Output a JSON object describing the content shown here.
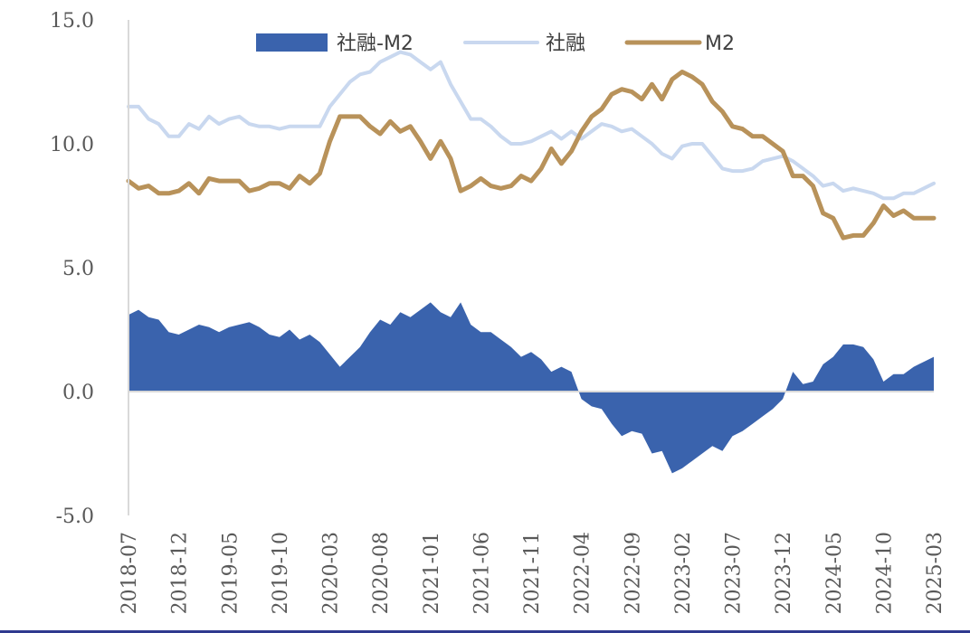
{
  "chart_data": {
    "type": "line",
    "title": "",
    "xlabel": "",
    "ylabel": "",
    "ylim": [
      -5.0,
      15.0
    ],
    "yticks": [
      "15.0",
      "10.0",
      "5.0",
      "0.0",
      "-5.0"
    ],
    "xtick_labels": [
      "2018-07",
      "2018-12",
      "2019-05",
      "2019-10",
      "2020-03",
      "2020-08",
      "2021-01",
      "2021-06",
      "2021-11",
      "2022-04",
      "2022-09",
      "2023-02",
      "2023-07",
      "2023-12",
      "2024-05",
      "2024-10",
      "2025-03"
    ],
    "legend": {
      "position": "top",
      "entries": [
        "社融-M2",
        "社融",
        "M2"
      ]
    },
    "grid": false,
    "x": [
      "2018-07",
      "2018-08",
      "2018-09",
      "2018-10",
      "2018-11",
      "2018-12",
      "2019-01",
      "2019-02",
      "2019-03",
      "2019-04",
      "2019-05",
      "2019-06",
      "2019-07",
      "2019-08",
      "2019-09",
      "2019-10",
      "2019-11",
      "2019-12",
      "2020-01",
      "2020-02",
      "2020-03",
      "2020-04",
      "2020-05",
      "2020-06",
      "2020-07",
      "2020-08",
      "2020-09",
      "2020-10",
      "2020-11",
      "2020-12",
      "2021-01",
      "2021-02",
      "2021-03",
      "2021-04",
      "2021-05",
      "2021-06",
      "2021-07",
      "2021-08",
      "2021-09",
      "2021-10",
      "2021-11",
      "2021-12",
      "2022-01",
      "2022-02",
      "2022-03",
      "2022-04",
      "2022-05",
      "2022-06",
      "2022-07",
      "2022-08",
      "2022-09",
      "2022-10",
      "2022-11",
      "2022-12",
      "2023-01",
      "2023-02",
      "2023-03",
      "2023-04",
      "2023-05",
      "2023-06",
      "2023-07",
      "2023-08",
      "2023-09",
      "2023-10",
      "2023-11",
      "2023-12",
      "2024-01",
      "2024-02",
      "2024-03",
      "2024-04",
      "2024-05",
      "2024-06",
      "2024-07",
      "2024-08",
      "2024-09",
      "2024-10",
      "2024-11",
      "2024-12",
      "2025-01",
      "2025-02",
      "2025-03"
    ],
    "series": [
      {
        "name": "社融-M2",
        "type": "area",
        "color": "#3a63ad",
        "values": [
          3.1,
          3.3,
          3.0,
          2.9,
          2.4,
          2.3,
          2.5,
          2.7,
          2.6,
          2.4,
          2.6,
          2.7,
          2.8,
          2.6,
          2.3,
          2.2,
          2.5,
          2.1,
          2.3,
          2.0,
          1.5,
          1.0,
          1.4,
          1.8,
          2.4,
          2.9,
          2.7,
          3.2,
          3.0,
          3.3,
          3.6,
          3.2,
          3.0,
          3.6,
          2.7,
          2.4,
          2.4,
          2.1,
          1.8,
          1.4,
          1.6,
          1.3,
          0.8,
          1.0,
          0.8,
          -0.3,
          -0.6,
          -0.7,
          -1.3,
          -1.8,
          -1.6,
          -1.7,
          -2.5,
          -2.4,
          -3.3,
          -3.1,
          -2.8,
          -2.5,
          -2.2,
          -2.4,
          -1.8,
          -1.6,
          -1.3,
          -1.0,
          -0.7,
          -0.3,
          0.8,
          0.3,
          0.4,
          1.1,
          1.4,
          1.9,
          1.9,
          1.8,
          1.3,
          0.4,
          0.7,
          0.7,
          1.0,
          1.2,
          1.4
        ]
      },
      {
        "name": "社融",
        "type": "line",
        "color": "#c9d8ef",
        "values": [
          11.5,
          11.5,
          11.0,
          10.8,
          10.3,
          10.3,
          10.8,
          10.6,
          11.1,
          10.8,
          11.0,
          11.1,
          10.8,
          10.7,
          10.7,
          10.6,
          10.7,
          10.7,
          10.7,
          10.7,
          11.5,
          12.0,
          12.5,
          12.8,
          12.9,
          13.3,
          13.5,
          13.7,
          13.6,
          13.3,
          13.0,
          13.3,
          12.4,
          11.7,
          11.0,
          11.0,
          10.7,
          10.3,
          10.0,
          10.0,
          10.1,
          10.3,
          10.5,
          10.2,
          10.5,
          10.2,
          10.5,
          10.8,
          10.7,
          10.5,
          10.6,
          10.3,
          10.0,
          9.6,
          9.4,
          9.9,
          10.0,
          10.0,
          9.5,
          9.0,
          8.9,
          8.9,
          9.0,
          9.3,
          9.4,
          9.5,
          9.3,
          9.0,
          8.7,
          8.3,
          8.4,
          8.1,
          8.2,
          8.1,
          8.0,
          7.8,
          7.8,
          8.0,
          8.0,
          8.2,
          8.4
        ]
      },
      {
        "name": "M2",
        "type": "line",
        "color": "#b8925a",
        "values": [
          8.5,
          8.2,
          8.3,
          8.0,
          8.0,
          8.1,
          8.4,
          8.0,
          8.6,
          8.5,
          8.5,
          8.5,
          8.1,
          8.2,
          8.4,
          8.4,
          8.2,
          8.7,
          8.4,
          8.8,
          10.1,
          11.1,
          11.1,
          11.1,
          10.7,
          10.4,
          10.9,
          10.5,
          10.7,
          10.1,
          9.4,
          10.1,
          9.4,
          8.1,
          8.3,
          8.6,
          8.3,
          8.2,
          8.3,
          8.7,
          8.5,
          9.0,
          9.8,
          9.2,
          9.7,
          10.5,
          11.1,
          11.4,
          12.0,
          12.2,
          12.1,
          11.8,
          12.4,
          11.8,
          12.6,
          12.9,
          12.7,
          12.4,
          11.7,
          11.3,
          10.7,
          10.6,
          10.3,
          10.3,
          10.0,
          9.7,
          8.7,
          8.7,
          8.3,
          7.2,
          7.0,
          6.2,
          6.3,
          6.3,
          6.8,
          7.5,
          7.1,
          7.3,
          7.0,
          7.0,
          7.0
        ]
      }
    ]
  }
}
